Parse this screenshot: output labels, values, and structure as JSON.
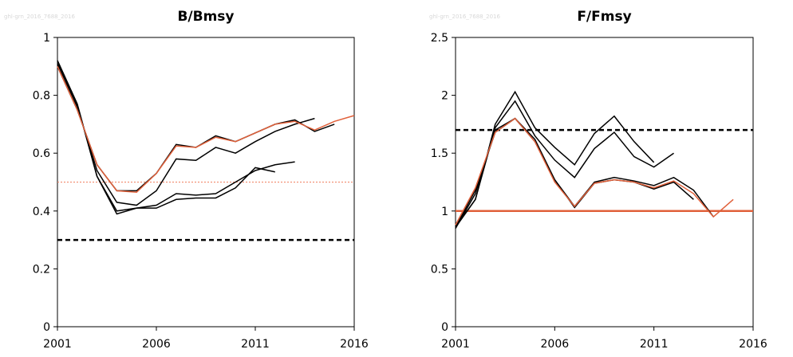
{
  "chart_data": [
    {
      "type": "line",
      "title": "B/Bmsy",
      "watermark": "ghl-grn_2016_7688_2016",
      "x": [
        2001,
        2002,
        2003,
        2004,
        2005,
        2006,
        2007,
        2008,
        2009,
        2010,
        2011,
        2012,
        2013,
        2014,
        2015,
        2016
      ],
      "series": [
        {
          "color": "#000000",
          "values": [
            0.92,
            0.77,
            0.52,
            0.39,
            0.41,
            0.41,
            0.44,
            0.445,
            0.445,
            0.48,
            0.55,
            0.535,
            null,
            null,
            null,
            null
          ]
        },
        {
          "color": "#000000",
          "values": [
            0.92,
            0.77,
            0.52,
            0.4,
            0.41,
            0.42,
            0.46,
            0.455,
            0.46,
            0.5,
            0.54,
            0.56,
            0.57,
            null,
            null,
            null
          ]
        },
        {
          "color": "#000000",
          "values": [
            0.91,
            0.76,
            0.54,
            0.43,
            0.42,
            0.47,
            0.58,
            0.575,
            0.62,
            0.6,
            0.64,
            0.675,
            0.7,
            0.72,
            null,
            null
          ]
        },
        {
          "color": "#000000",
          "values": [
            0.9,
            0.75,
            0.56,
            0.47,
            0.47,
            0.53,
            0.63,
            0.62,
            0.66,
            0.64,
            0.67,
            0.7,
            0.715,
            0.675,
            0.7,
            null
          ]
        },
        {
          "color": "#e0603a",
          "values": [
            0.9,
            0.75,
            0.56,
            0.47,
            0.465,
            0.53,
            0.625,
            0.62,
            0.655,
            0.64,
            0.67,
            0.7,
            0.71,
            0.68,
            0.71,
            0.73
          ]
        }
      ],
      "hlines": [
        {
          "value": 0.3,
          "color": "#000000",
          "style": "dashed"
        },
        {
          "value": 0.5,
          "color": "#f08060",
          "style": "dotted"
        }
      ],
      "xlim": [
        2001,
        2016
      ],
      "xticks": [
        2001,
        2006,
        2011,
        2016
      ],
      "ylim": [
        0,
        1
      ],
      "yticks": [
        0,
        0.2,
        0.4,
        0.6,
        0.8,
        1
      ]
    },
    {
      "type": "line",
      "title": "F/Fmsy",
      "watermark": "ghl-grn_2016_7688_2016",
      "x": [
        2001,
        2002,
        2003,
        2004,
        2005,
        2006,
        2007,
        2008,
        2009,
        2010,
        2011,
        2012,
        2013,
        2014,
        2015
      ],
      "series": [
        {
          "color": "#000000",
          "values": [
            0.86,
            1.1,
            1.75,
            2.03,
            1.72,
            1.55,
            1.4,
            1.67,
            1.82,
            1.6,
            1.42,
            null,
            null,
            null,
            null
          ]
        },
        {
          "color": "#000000",
          "values": [
            0.86,
            1.1,
            1.72,
            1.95,
            1.65,
            1.44,
            1.29,
            1.54,
            1.68,
            1.47,
            1.38,
            1.5,
            null,
            null,
            null
          ]
        },
        {
          "color": "#000000",
          "values": [
            0.85,
            1.15,
            1.7,
            1.8,
            1.6,
            1.27,
            1.03,
            1.24,
            1.27,
            1.25,
            1.19,
            1.25,
            1.1,
            null,
            null
          ]
        },
        {
          "color": "#000000",
          "values": [
            0.86,
            1.18,
            1.68,
            1.8,
            1.62,
            1.27,
            1.04,
            1.25,
            1.29,
            1.26,
            1.22,
            1.29,
            1.18,
            0.95,
            null
          ]
        },
        {
          "color": "#e0603a",
          "values": [
            0.88,
            1.2,
            1.68,
            1.8,
            1.6,
            1.25,
            1.04,
            1.24,
            1.27,
            1.25,
            1.2,
            1.26,
            1.15,
            0.95,
            1.1
          ]
        }
      ],
      "hlines": [
        {
          "value": 1.7,
          "color": "#000000",
          "style": "dashed"
        },
        {
          "value": 1,
          "color": "#e0603a",
          "style": "solid"
        }
      ],
      "xlim": [
        2001,
        2016
      ],
      "xticks": [
        2001,
        2006,
        2011,
        2016
      ],
      "ylim": [
        0,
        2.5
      ],
      "yticks": [
        0,
        0.5,
        1,
        1.5,
        2,
        2.5
      ]
    }
  ]
}
